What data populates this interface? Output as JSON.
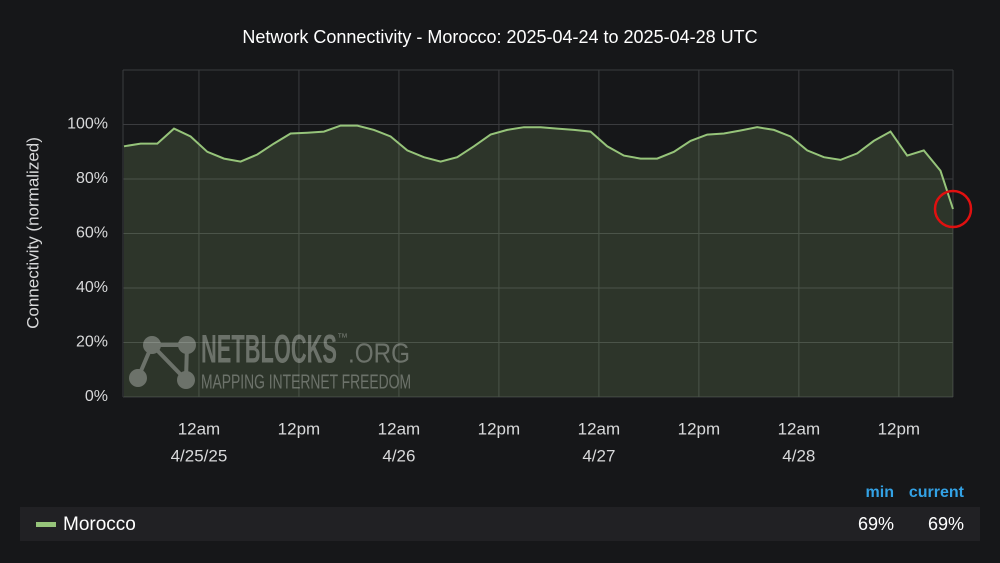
{
  "chart_data": {
    "type": "area",
    "title": "Network Connectivity - Morocco: 2025-04-24 to 2025-04-28 UTC",
    "y_label": "Connectivity (normalized)",
    "x": [
      "2025-04-24T15:00",
      "2025-04-24T17:00",
      "2025-04-24T19:00",
      "2025-04-24T21:00",
      "2025-04-24T23:00",
      "2025-04-25T01:00",
      "2025-04-25T03:00",
      "2025-04-25T05:00",
      "2025-04-25T07:00",
      "2025-04-25T09:00",
      "2025-04-25T11:00",
      "2025-04-25T13:00",
      "2025-04-25T15:00",
      "2025-04-25T17:00",
      "2025-04-25T19:00",
      "2025-04-25T21:00",
      "2025-04-25T23:00",
      "2025-04-26T01:00",
      "2025-04-26T03:00",
      "2025-04-26T05:00",
      "2025-04-26T07:00",
      "2025-04-26T09:00",
      "2025-04-26T11:00",
      "2025-04-26T13:00",
      "2025-04-26T15:00",
      "2025-04-26T17:00",
      "2025-04-26T19:00",
      "2025-04-26T21:00",
      "2025-04-26T23:00",
      "2025-04-27T01:00",
      "2025-04-27T03:00",
      "2025-04-27T05:00",
      "2025-04-27T07:00",
      "2025-04-27T09:00",
      "2025-04-27T11:00",
      "2025-04-27T13:00",
      "2025-04-27T15:00",
      "2025-04-27T17:00",
      "2025-04-27T19:00",
      "2025-04-27T21:00",
      "2025-04-27T23:00",
      "2025-04-28T01:00",
      "2025-04-28T03:00",
      "2025-04-28T05:00",
      "2025-04-28T07:00",
      "2025-04-28T09:00",
      "2025-04-28T11:00",
      "2025-04-28T13:00",
      "2025-04-28T15:00",
      "2025-04-28T17:00",
      "2025-04-28T18:30"
    ],
    "series": [
      {
        "name": "Morocco",
        "color": "#96c47a",
        "values": [
          92,
          93,
          93,
          98.5,
          95.6,
          90,
          87.5,
          86.4,
          89,
          93,
          96.7,
          97,
          97.4,
          99.6,
          99.6,
          98,
          95.6,
          90.5,
          88,
          86.4,
          88,
          92,
          96.3,
          98,
          99,
          99,
          98.5,
          98,
          97.4,
          92,
          88.6,
          87.5,
          87.5,
          90,
          94,
          96.3,
          96.7,
          97.8,
          99,
          98,
          95.6,
          90.5,
          88,
          87,
          89.4,
          94,
          97.4,
          88.6,
          90.5,
          83,
          69
        ]
      }
    ],
    "xlim": [
      "2025-04-24T14:53",
      "2025-04-28T18:30"
    ],
    "xticks": [
      {
        "value": "2025-04-25T00:00",
        "label": "12am",
        "date": "4/25/25"
      },
      {
        "value": "2025-04-25T12:00",
        "label": "12pm"
      },
      {
        "value": "2025-04-26T00:00",
        "label": "12am",
        "date": "4/26"
      },
      {
        "value": "2025-04-26T12:00",
        "label": "12pm"
      },
      {
        "value": "2025-04-27T00:00",
        "label": "12am",
        "date": "4/27"
      },
      {
        "value": "2025-04-27T12:00",
        "label": "12pm"
      },
      {
        "value": "2025-04-28T00:00",
        "label": "12am",
        "date": "4/28"
      },
      {
        "value": "2025-04-28T12:00",
        "label": "12pm"
      }
    ],
    "ylim": [
      0,
      120
    ],
    "yticks": [
      {
        "value": 0,
        "label": "0%"
      },
      {
        "value": 20,
        "label": "20%"
      },
      {
        "value": 40,
        "label": "40%"
      },
      {
        "value": 60,
        "label": "60%"
      },
      {
        "value": 80,
        "label": "80%"
      },
      {
        "value": 100,
        "label": "100%"
      }
    ],
    "grid": true,
    "legend_columns": [
      "min",
      "current"
    ],
    "legend_values": [
      69,
      69
    ],
    "legend_value_labels": [
      "69%",
      "69%"
    ],
    "watermark": {
      "name": "NETBLOCKS",
      "mark": "™",
      "suffix": ".ORG",
      "tagline": "MAPPING INTERNET FREEDOM"
    }
  }
}
